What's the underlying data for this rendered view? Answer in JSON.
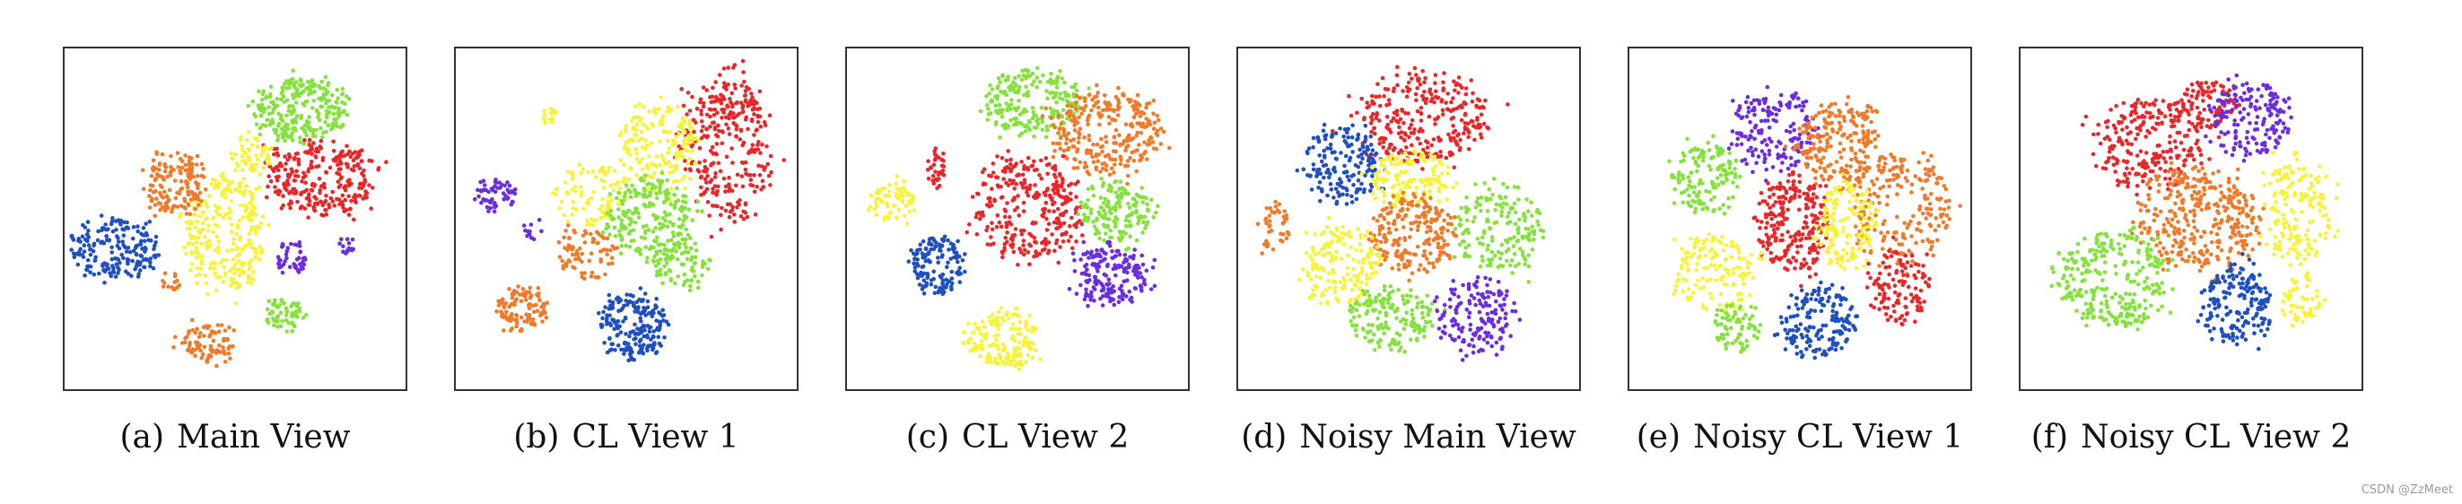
{
  "colors": {
    "red": "#e8272a",
    "orange": "#ef7b2a",
    "yellow": "#f7f23a",
    "green": "#85e23c",
    "blue": "#1f4fc0",
    "purple": "#6a2ee0",
    "frame": "#333333"
  },
  "watermark": "CSDN @ZzMeet",
  "chart_data": [
    {
      "type": "scatter",
      "tag": "(a)",
      "title": "Main View",
      "xlim": [
        0,
        100
      ],
      "ylim": [
        0,
        100
      ],
      "clusters": [
        {
          "color": "green",
          "cx": 70,
          "cy": 83,
          "rx": 14,
          "ry": 10,
          "n": 260
        },
        {
          "color": "red",
          "cx": 76,
          "cy": 62,
          "rx": 16,
          "ry": 11,
          "n": 280
        },
        {
          "color": "yellow",
          "cx": 47,
          "cy": 45,
          "rx": 12,
          "ry": 17,
          "n": 280
        },
        {
          "color": "yellow",
          "cx": 55,
          "cy": 69,
          "rx": 6,
          "ry": 6,
          "n": 60
        },
        {
          "color": "orange",
          "cx": 32,
          "cy": 60,
          "rx": 10,
          "ry": 9,
          "n": 150
        },
        {
          "color": "blue",
          "cx": 14,
          "cy": 41,
          "rx": 13,
          "ry": 9,
          "n": 190
        },
        {
          "color": "orange",
          "cx": 42,
          "cy": 13,
          "rx": 8,
          "ry": 6,
          "n": 90
        },
        {
          "color": "orange",
          "cx": 31,
          "cy": 31,
          "rx": 3,
          "ry": 3,
          "n": 15
        },
        {
          "color": "green",
          "cx": 65,
          "cy": 21,
          "rx": 6,
          "ry": 5,
          "n": 60
        },
        {
          "color": "purple",
          "cx": 67,
          "cy": 38,
          "rx": 5,
          "ry": 5,
          "n": 45
        },
        {
          "color": "purple",
          "cx": 83,
          "cy": 42,
          "rx": 2.5,
          "ry": 2.5,
          "n": 15
        }
      ]
    },
    {
      "type": "scatter",
      "tag": "(b)",
      "title": "CL View 1",
      "xlim": [
        0,
        100
      ],
      "ylim": [
        0,
        100
      ],
      "clusters": [
        {
          "color": "red",
          "cx": 80,
          "cy": 72,
          "rx": 13,
          "ry": 22,
          "n": 320
        },
        {
          "color": "yellow",
          "cx": 60,
          "cy": 72,
          "rx": 12,
          "ry": 14,
          "n": 180
        },
        {
          "color": "yellow",
          "cx": 40,
          "cy": 58,
          "rx": 10,
          "ry": 10,
          "n": 100
        },
        {
          "color": "green",
          "cx": 57,
          "cy": 50,
          "rx": 13,
          "ry": 12,
          "n": 220
        },
        {
          "color": "green",
          "cx": 66,
          "cy": 36,
          "rx": 8,
          "ry": 7,
          "n": 80
        },
        {
          "color": "orange",
          "cx": 38,
          "cy": 40,
          "rx": 8,
          "ry": 8,
          "n": 80
        },
        {
          "color": "blue",
          "cx": 52,
          "cy": 18,
          "rx": 10,
          "ry": 10,
          "n": 200
        },
        {
          "color": "orange",
          "cx": 19,
          "cy": 23,
          "rx": 8,
          "ry": 7,
          "n": 110
        },
        {
          "color": "purple",
          "cx": 11,
          "cy": 57,
          "rx": 6,
          "ry": 5,
          "n": 60
        },
        {
          "color": "purple",
          "cx": 22,
          "cy": 47,
          "rx": 3,
          "ry": 3,
          "n": 12
        },
        {
          "color": "yellow",
          "cx": 27,
          "cy": 81,
          "rx": 2.5,
          "ry": 2.5,
          "n": 15
        }
      ]
    },
    {
      "type": "scatter",
      "tag": "(c)",
      "title": "CL View 2",
      "xlim": [
        0,
        100
      ],
      "ylim": [
        0,
        100
      ],
      "clusters": [
        {
          "color": "green",
          "cx": 55,
          "cy": 85,
          "rx": 16,
          "ry": 10,
          "n": 230
        },
        {
          "color": "orange",
          "cx": 77,
          "cy": 76,
          "rx": 16,
          "ry": 13,
          "n": 280
        },
        {
          "color": "red",
          "cx": 53,
          "cy": 53,
          "rx": 16,
          "ry": 16,
          "n": 300
        },
        {
          "color": "green",
          "cx": 80,
          "cy": 52,
          "rx": 11,
          "ry": 9,
          "n": 160
        },
        {
          "color": "purple",
          "cx": 78,
          "cy": 33,
          "rx": 12,
          "ry": 9,
          "n": 190
        },
        {
          "color": "blue",
          "cx": 26,
          "cy": 36,
          "rx": 8,
          "ry": 9,
          "n": 140
        },
        {
          "color": "yellow",
          "cx": 46,
          "cy": 14,
          "rx": 11,
          "ry": 9,
          "n": 170
        },
        {
          "color": "yellow",
          "cx": 13,
          "cy": 55,
          "rx": 7,
          "ry": 6,
          "n": 70
        },
        {
          "color": "red",
          "cx": 26,
          "cy": 65,
          "rx": 3,
          "ry": 6,
          "n": 35
        }
      ]
    },
    {
      "type": "scatter",
      "tag": "(d)",
      "title": "Noisy Main View",
      "xlim": [
        0,
        100
      ],
      "ylim": [
        0,
        100
      ],
      "clusters": [
        {
          "color": "red",
          "cx": 55,
          "cy": 80,
          "rx": 20,
          "ry": 14,
          "n": 300
        },
        {
          "color": "blue",
          "cx": 30,
          "cy": 66,
          "rx": 11,
          "ry": 12,
          "n": 170
        },
        {
          "color": "yellow",
          "cx": 51,
          "cy": 62,
          "rx": 12,
          "ry": 9,
          "n": 140
        },
        {
          "color": "orange",
          "cx": 51,
          "cy": 45,
          "rx": 13,
          "ry": 11,
          "n": 220
        },
        {
          "color": "green",
          "cx": 77,
          "cy": 46,
          "rx": 14,
          "ry": 13,
          "n": 170
        },
        {
          "color": "yellow",
          "cx": 30,
          "cy": 36,
          "rx": 11,
          "ry": 13,
          "n": 170
        },
        {
          "color": "green",
          "cx": 45,
          "cy": 20,
          "rx": 13,
          "ry": 9,
          "n": 170
        },
        {
          "color": "purple",
          "cx": 70,
          "cy": 21,
          "rx": 12,
          "ry": 11,
          "n": 160
        },
        {
          "color": "orange",
          "cx": 10,
          "cy": 48,
          "rx": 5,
          "ry": 8,
          "n": 40
        }
      ]
    },
    {
      "type": "scatter",
      "tag": "(e)",
      "title": "Noisy CL View 1",
      "xlim": [
        0,
        100
      ],
      "ylim": [
        0,
        100
      ],
      "clusters": [
        {
          "color": "purple",
          "cx": 42,
          "cy": 76,
          "rx": 13,
          "ry": 13,
          "n": 170
        },
        {
          "color": "orange",
          "cx": 61,
          "cy": 72,
          "rx": 12,
          "ry": 13,
          "n": 200
        },
        {
          "color": "orange",
          "cx": 80,
          "cy": 54,
          "rx": 15,
          "ry": 17,
          "n": 210
        },
        {
          "color": "green",
          "cx": 22,
          "cy": 62,
          "rx": 10,
          "ry": 11,
          "n": 140
        },
        {
          "color": "red",
          "cx": 48,
          "cy": 48,
          "rx": 11,
          "ry": 15,
          "n": 240
        },
        {
          "color": "yellow",
          "cx": 64,
          "cy": 48,
          "rx": 9,
          "ry": 13,
          "n": 150
        },
        {
          "color": "red",
          "cx": 80,
          "cy": 30,
          "rx": 9,
          "ry": 11,
          "n": 120
        },
        {
          "color": "yellow",
          "cx": 24,
          "cy": 34,
          "rx": 12,
          "ry": 12,
          "n": 150
        },
        {
          "color": "green",
          "cx": 31,
          "cy": 18,
          "rx": 7,
          "ry": 7,
          "n": 70
        },
        {
          "color": "blue",
          "cx": 55,
          "cy": 19,
          "rx": 11,
          "ry": 11,
          "n": 170
        },
        {
          "color": "orange",
          "cx": 71,
          "cy": 81,
          "rx": 3,
          "ry": 3,
          "n": 15
        }
      ]
    },
    {
      "type": "scatter",
      "tag": "(f)",
      "title": "Noisy CL View 2",
      "xlim": [
        0,
        100
      ],
      "ylim": [
        0,
        100
      ],
      "clusters": [
        {
          "color": "red",
          "cx": 37,
          "cy": 73,
          "rx": 16,
          "ry": 14,
          "n": 240
        },
        {
          "color": "red",
          "cx": 55,
          "cy": 84,
          "rx": 9,
          "ry": 8,
          "n": 100
        },
        {
          "color": "purple",
          "cx": 68,
          "cy": 80,
          "rx": 12,
          "ry": 12,
          "n": 170
        },
        {
          "color": "orange",
          "cx": 52,
          "cy": 50,
          "rx": 18,
          "ry": 15,
          "n": 340
        },
        {
          "color": "yellow",
          "cx": 82,
          "cy": 52,
          "rx": 11,
          "ry": 16,
          "n": 180
        },
        {
          "color": "green",
          "cx": 27,
          "cy": 32,
          "rx": 17,
          "ry": 15,
          "n": 280
        },
        {
          "color": "blue",
          "cx": 64,
          "cy": 24,
          "rx": 11,
          "ry": 12,
          "n": 180
        },
        {
          "color": "yellow",
          "cx": 83,
          "cy": 26,
          "rx": 6,
          "ry": 8,
          "n": 50
        }
      ]
    }
  ]
}
